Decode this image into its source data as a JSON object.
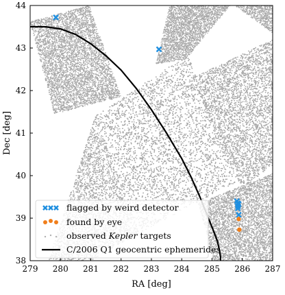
{
  "chart_data": {
    "type": "scatter",
    "title": "",
    "xlabel": "RA [deg]",
    "ylabel": "Dec [deg]",
    "xlim": [
      279,
      287
    ],
    "ylim": [
      38,
      44
    ],
    "xticks": [
      "279",
      "280",
      "281",
      "282",
      "283",
      "284",
      "285",
      "286",
      "287"
    ],
    "yticks": [
      "38",
      "39",
      "40",
      "41",
      "42",
      "43",
      "44"
    ],
    "grid": false,
    "legend_position": "lower-left",
    "series": [
      {
        "name": "flagged by weird detector",
        "kind": "marker-x",
        "color": "#1f8fe0",
        "x": [
          279.85,
          283.25,
          285.82,
          285.85,
          285.88,
          285.86,
          285.85,
          285.88
        ],
        "y": [
          43.72,
          42.97,
          39.4,
          39.35,
          39.33,
          39.28,
          39.23,
          39.08
        ]
      },
      {
        "name": "found by eye",
        "kind": "marker-dot",
        "color": "#f07f1c",
        "x": [
          285.87,
          285.88,
          285.9
        ],
        "y": [
          39.3,
          38.98,
          38.73
        ]
      },
      {
        "name": "observed Kepler targets",
        "kind": "background-points",
        "color": "#a8a8a8",
        "regions": [
          {
            "corners": [
              [
                279.0,
                43.62
              ],
              [
                280.95,
                44.0
              ],
              [
                282.0,
                41.85
              ],
              [
                279.8,
                41.45
              ]
            ]
          },
          {
            "corners": [
              [
                283.6,
                44.0
              ],
              [
                285.6,
                44.0
              ],
              [
                284.15,
                42.75
              ],
              [
                283.15,
                42.62
              ]
            ]
          },
          {
            "corners": [
              [
                285.75,
                44.0
              ],
              [
                287.0,
                44.0
              ],
              [
                287.0,
                43.35
              ]
            ]
          },
          {
            "corners": [
              [
                281.15,
                41.4
              ],
              [
                284.2,
                42.85
              ],
              [
                285.8,
                39.85
              ],
              [
                282.6,
                38.65
              ]
            ]
          },
          {
            "corners": [
              [
                284.35,
                42.3
              ],
              [
                287.0,
                43.2
              ],
              [
                287.0,
                40.25
              ],
              [
                285.95,
                39.65
              ]
            ]
          },
          {
            "corners": [
              [
                281.15,
                41.4
              ],
              [
                282.6,
                38.65
              ],
              [
                281.0,
                38.0
              ],
              [
                279.6,
                38.0
              ]
            ]
          },
          {
            "corners": [
              [
                284.55,
                39.35
              ],
              [
                287.0,
                40.05
              ],
              [
                287.0,
                38.0
              ],
              [
                285.05,
                38.0
              ]
            ]
          }
        ]
      },
      {
        "name": "C/2006 Q1 geocentric ephemerides",
        "kind": "line",
        "color": "#000000",
        "x": [
          279.0,
          279.5,
          280.0,
          280.5,
          281.0,
          281.5,
          282.0,
          282.5,
          283.0,
          283.5,
          284.0,
          284.3,
          284.6,
          284.85,
          285.05,
          285.18,
          285.25,
          285.28,
          285.28
        ],
        "y": [
          43.5,
          43.5,
          43.45,
          43.32,
          43.1,
          42.82,
          42.48,
          42.05,
          41.55,
          41.0,
          40.4,
          39.98,
          39.5,
          39.05,
          38.7,
          38.45,
          38.22,
          38.08,
          38.0
        ]
      }
    ]
  }
}
